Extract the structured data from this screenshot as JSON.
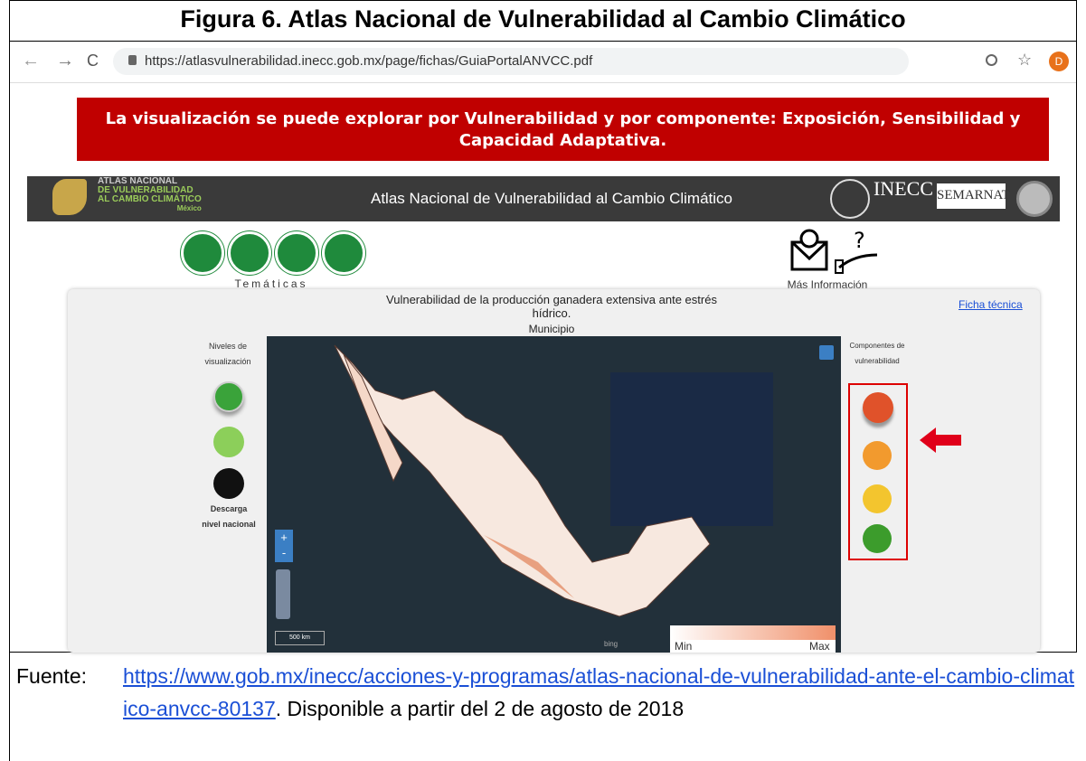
{
  "figure_title": "Figura 6.  Atlas Nacional de Vulnerabilidad al Cambio Climático",
  "browser": {
    "url": "https://atlasvulnerabilidad.inecc.gob.mx/page/fichas/GuiaPortalANVCC.pdf",
    "avatar": "D"
  },
  "banner": "La visualización se puede explorar por Vulnerabilidad y por componente: Exposición, Sensibilidad y Capacidad Adaptativa.",
  "site_header": {
    "logo_lines": [
      "ATLAS NACIONAL",
      "DE VULNERABILIDAD",
      "AL CAMBIO CLIMÁTICO",
      "México"
    ],
    "title": "Atlas Nacional de Vulnerabilidad al Cambio Climático",
    "inecc": "INECC",
    "semarnat": "SEMARNAT"
  },
  "nav": {
    "tematicas": "Temáticas",
    "mas_informacion": "Más Información"
  },
  "map_panel": {
    "title": "Vulnerabilidad de la producción ganadera extensiva ante estrés hídrico.",
    "subtitle": "Municipio",
    "ficha_link": "Ficha técnica",
    "levels_label": "Niveles de visualización",
    "download_label": "Descarga nivel nacional",
    "components_label": "Componentes de vulnerabilidad",
    "zoom_in": "+",
    "zoom_out": "-",
    "scale": "500 km",
    "attribution": "bing",
    "legend_min": "Min",
    "legend_max": "Max"
  },
  "source": {
    "label": "Fuente:",
    "link": "https://www.gob.mx/inecc/acciones-y-programas/atlas-nacional-de-vulnerabilidad-ante-el-cambio-climatico-anvcc-80137",
    "note": ". Disponible a partir del 2 de agosto de 2018"
  }
}
